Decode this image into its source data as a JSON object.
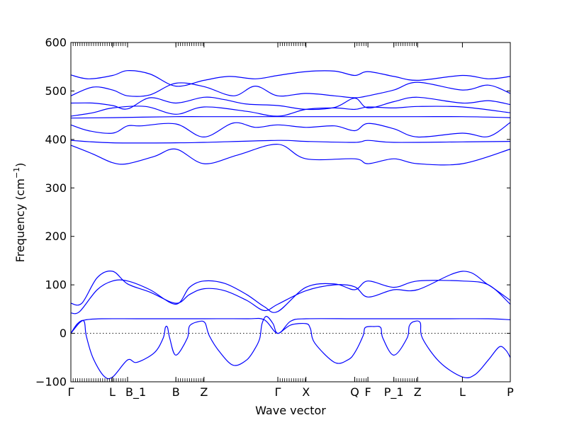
{
  "chart_data": {
    "type": "line",
    "title": "",
    "xlabel": "Wave vector",
    "ylabel": "Frequency (cm",
    "ylabel_sup": "−1",
    "ylabel_close": ")",
    "ylim": [
      -100,
      600
    ],
    "y_ticks": [
      -100,
      0,
      100,
      200,
      300,
      400,
      500,
      600
    ],
    "y_tick_labels": [
      "−100",
      "0",
      "100",
      "200",
      "300",
      "400",
      "500",
      "600"
    ],
    "zero_line": "dotted",
    "grid": false,
    "x_ticks": [
      {
        "label": "Γ",
        "pos": 0.0
      },
      {
        "label": "L",
        "pos": 0.095
      },
      {
        "label": "B_1",
        "pos": 0.129
      },
      {
        "label": "B",
        "pos": 0.239
      },
      {
        "label": "Z",
        "pos": 0.303
      },
      {
        "label": "Γ",
        "pos": 0.471
      },
      {
        "label": "X",
        "pos": 0.535
      },
      {
        "label": "Q",
        "pos": 0.646
      },
      {
        "label": "F",
        "pos": 0.676
      },
      {
        "label": "P_1",
        "pos": 0.735
      },
      {
        "label": "Z",
        "pos": 0.789
      },
      {
        "label": "L",
        "pos": 0.891
      },
      {
        "label": "P",
        "pos": 1.0
      }
    ],
    "series": [
      {
        "points": [
          [
            0,
            0
          ],
          [
            0.02,
            22
          ],
          [
            0.035,
            28
          ],
          [
            0.07,
            30
          ],
          [
            0.15,
            30
          ],
          [
            0.239,
            30
          ],
          [
            0.303,
            30
          ],
          [
            0.4,
            30
          ],
          [
            0.44,
            28
          ],
          [
            0.471,
            0
          ],
          [
            0.5,
            25
          ],
          [
            0.535,
            30
          ],
          [
            0.646,
            30
          ],
          [
            0.735,
            30
          ],
          [
            0.85,
            30
          ],
          [
            0.95,
            30
          ],
          [
            1.0,
            28
          ]
        ]
      },
      {
        "points": [
          [
            0,
            0
          ],
          [
            0.015,
            20
          ],
          [
            0.03,
            25
          ],
          [
            0.035,
            -5
          ],
          [
            0.05,
            -50
          ],
          [
            0.075,
            -88
          ],
          [
            0.095,
            -90
          ],
          [
            0.129,
            -55
          ],
          [
            0.15,
            -60
          ],
          [
            0.19,
            -40
          ],
          [
            0.21,
            -10
          ],
          [
            0.215,
            12
          ],
          [
            0.22,
            12
          ],
          [
            0.225,
            -10
          ],
          [
            0.239,
            -45
          ],
          [
            0.265,
            -10
          ],
          [
            0.27,
            15
          ],
          [
            0.29,
            24
          ],
          [
            0.305,
            22
          ],
          [
            0.315,
            -5
          ],
          [
            0.34,
            -40
          ],
          [
            0.37,
            -66
          ],
          [
            0.4,
            -55
          ],
          [
            0.42,
            -30
          ],
          [
            0.43,
            -10
          ],
          [
            0.435,
            20
          ],
          [
            0.445,
            35
          ],
          [
            0.46,
            20
          ],
          [
            0.471,
            0
          ],
          [
            0.5,
            17
          ],
          [
            0.535,
            20
          ],
          [
            0.545,
            10
          ],
          [
            0.555,
            -20
          ],
          [
            0.6,
            -60
          ],
          [
            0.63,
            -55
          ],
          [
            0.646,
            -40
          ],
          [
            0.665,
            -5
          ],
          [
            0.67,
            12
          ],
          [
            0.69,
            14
          ],
          [
            0.705,
            12
          ],
          [
            0.71,
            -10
          ],
          [
            0.735,
            -45
          ],
          [
            0.765,
            -10
          ],
          [
            0.77,
            15
          ],
          [
            0.78,
            24
          ],
          [
            0.795,
            22
          ],
          [
            0.8,
            -10
          ],
          [
            0.84,
            -60
          ],
          [
            0.891,
            -90
          ],
          [
            0.92,
            -85
          ],
          [
            0.95,
            -55
          ],
          [
            0.975,
            -28
          ],
          [
            0.99,
            -35
          ],
          [
            1.0,
            -50
          ]
        ]
      },
      {
        "points": [
          [
            0,
            42
          ],
          [
            0.02,
            45
          ],
          [
            0.06,
            90
          ],
          [
            0.095,
            108
          ],
          [
            0.129,
            108
          ],
          [
            0.18,
            90
          ],
          [
            0.239,
            60
          ],
          [
            0.27,
            95
          ],
          [
            0.303,
            108
          ],
          [
            0.35,
            103
          ],
          [
            0.4,
            80
          ],
          [
            0.44,
            55
          ],
          [
            0.471,
            45
          ],
          [
            0.535,
            95
          ],
          [
            0.6,
            102
          ],
          [
            0.646,
            90
          ],
          [
            0.676,
            108
          ],
          [
            0.735,
            95
          ],
          [
            0.789,
            108
          ],
          [
            0.891,
            108
          ],
          [
            0.95,
            100
          ],
          [
            1.0,
            60
          ]
        ]
      },
      {
        "points": [
          [
            0,
            62
          ],
          [
            0.025,
            62
          ],
          [
            0.06,
            115
          ],
          [
            0.095,
            128
          ],
          [
            0.129,
            102
          ],
          [
            0.18,
            85
          ],
          [
            0.239,
            62
          ],
          [
            0.27,
            80
          ],
          [
            0.303,
            92
          ],
          [
            0.35,
            88
          ],
          [
            0.4,
            68
          ],
          [
            0.44,
            47
          ],
          [
            0.471,
            60
          ],
          [
            0.535,
            88
          ],
          [
            0.6,
            100
          ],
          [
            0.646,
            96
          ],
          [
            0.676,
            75
          ],
          [
            0.735,
            90
          ],
          [
            0.789,
            90
          ],
          [
            0.891,
            128
          ],
          [
            0.95,
            100
          ],
          [
            1.0,
            68
          ]
        ]
      },
      {
        "points": [
          [
            0,
            388
          ],
          [
            0.05,
            370
          ],
          [
            0.095,
            352
          ],
          [
            0.129,
            350
          ],
          [
            0.19,
            365
          ],
          [
            0.239,
            380
          ],
          [
            0.303,
            350
          ],
          [
            0.38,
            368
          ],
          [
            0.471,
            390
          ],
          [
            0.535,
            360
          ],
          [
            0.646,
            360
          ],
          [
            0.676,
            350
          ],
          [
            0.735,
            360
          ],
          [
            0.789,
            350
          ],
          [
            0.891,
            350
          ],
          [
            1.0,
            380
          ]
        ]
      },
      {
        "points": [
          [
            0,
            398
          ],
          [
            0.095,
            393
          ],
          [
            0.239,
            393
          ],
          [
            0.303,
            394
          ],
          [
            0.471,
            398
          ],
          [
            0.535,
            396
          ],
          [
            0.646,
            394
          ],
          [
            0.676,
            398
          ],
          [
            0.735,
            394
          ],
          [
            0.891,
            395
          ],
          [
            1.0,
            396
          ]
        ]
      },
      {
        "points": [
          [
            0,
            430
          ],
          [
            0.04,
            418
          ],
          [
            0.095,
            413
          ],
          [
            0.129,
            428
          ],
          [
            0.16,
            428
          ],
          [
            0.239,
            432
          ],
          [
            0.303,
            405
          ],
          [
            0.37,
            434
          ],
          [
            0.42,
            425
          ],
          [
            0.471,
            430
          ],
          [
            0.535,
            425
          ],
          [
            0.6,
            428
          ],
          [
            0.646,
            418
          ],
          [
            0.676,
            433
          ],
          [
            0.735,
            422
          ],
          [
            0.789,
            405
          ],
          [
            0.891,
            413
          ],
          [
            0.95,
            406
          ],
          [
            1.0,
            435
          ]
        ]
      },
      {
        "points": [
          [
            0,
            444
          ],
          [
            0.095,
            445
          ],
          [
            0.239,
            447
          ],
          [
            0.303,
            447
          ],
          [
            0.471,
            447
          ],
          [
            0.535,
            447
          ],
          [
            0.646,
            447
          ],
          [
            0.789,
            447
          ],
          [
            0.891,
            447
          ],
          [
            1.0,
            445
          ]
        ]
      },
      {
        "points": [
          [
            0,
            448
          ],
          [
            0.05,
            455
          ],
          [
            0.095,
            465
          ],
          [
            0.17,
            468
          ],
          [
            0.239,
            452
          ],
          [
            0.303,
            467
          ],
          [
            0.4,
            458
          ],
          [
            0.471,
            448
          ],
          [
            0.535,
            462
          ],
          [
            0.6,
            465
          ],
          [
            0.646,
            462
          ],
          [
            0.676,
            467
          ],
          [
            0.735,
            465
          ],
          [
            0.789,
            468
          ],
          [
            0.891,
            467
          ],
          [
            1.0,
            455
          ]
        ]
      },
      {
        "points": [
          [
            0,
            475
          ],
          [
            0.05,
            475
          ],
          [
            0.095,
            470
          ],
          [
            0.129,
            463
          ],
          [
            0.18,
            486
          ],
          [
            0.239,
            475
          ],
          [
            0.303,
            487
          ],
          [
            0.35,
            482
          ],
          [
            0.4,
            473
          ],
          [
            0.471,
            470
          ],
          [
            0.535,
            462
          ],
          [
            0.6,
            466
          ],
          [
            0.646,
            485
          ],
          [
            0.676,
            465
          ],
          [
            0.735,
            478
          ],
          [
            0.789,
            487
          ],
          [
            0.891,
            475
          ],
          [
            0.95,
            480
          ],
          [
            1.0,
            472
          ]
        ]
      },
      {
        "points": [
          [
            0,
            490
          ],
          [
            0.05,
            508
          ],
          [
            0.095,
            502
          ],
          [
            0.129,
            490
          ],
          [
            0.18,
            492
          ],
          [
            0.239,
            516
          ],
          [
            0.303,
            509
          ],
          [
            0.37,
            490
          ],
          [
            0.42,
            510
          ],
          [
            0.471,
            490
          ],
          [
            0.535,
            495
          ],
          [
            0.6,
            490
          ],
          [
            0.646,
            486
          ],
          [
            0.676,
            490
          ],
          [
            0.735,
            502
          ],
          [
            0.789,
            518
          ],
          [
            0.891,
            502
          ],
          [
            0.95,
            512
          ],
          [
            1.0,
            495
          ]
        ]
      },
      {
        "points": [
          [
            0,
            533
          ],
          [
            0.04,
            525
          ],
          [
            0.095,
            532
          ],
          [
            0.129,
            542
          ],
          [
            0.18,
            535
          ],
          [
            0.239,
            510
          ],
          [
            0.303,
            522
          ],
          [
            0.36,
            530
          ],
          [
            0.42,
            525
          ],
          [
            0.471,
            532
          ],
          [
            0.535,
            540
          ],
          [
            0.6,
            541
          ],
          [
            0.646,
            532
          ],
          [
            0.676,
            540
          ],
          [
            0.735,
            530
          ],
          [
            0.789,
            522
          ],
          [
            0.891,
            532
          ],
          [
            0.95,
            525
          ],
          [
            1.0,
            530
          ]
        ]
      }
    ]
  }
}
